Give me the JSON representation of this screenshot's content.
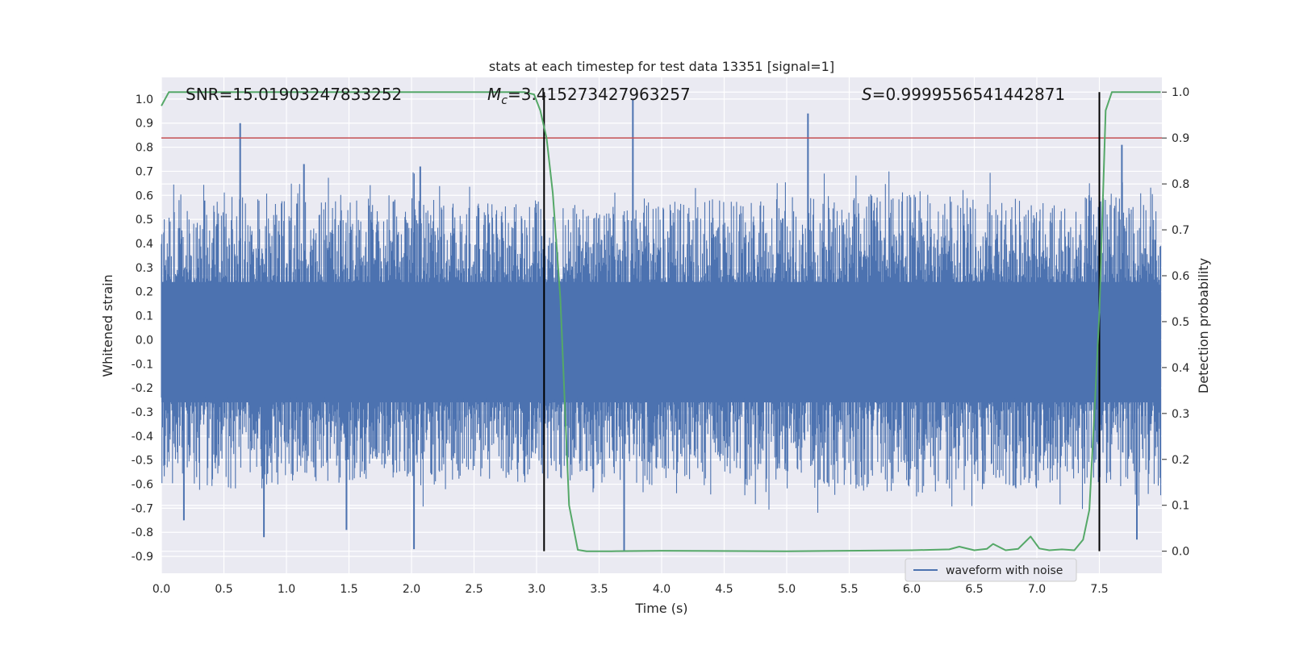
{
  "chart_data": {
    "type": "line",
    "title": "stats at each timestep for test data 13351 [signal=1]",
    "xlabel": "Time (s)",
    "ylabel": "Whitened strain",
    "y2label": "Detection probability",
    "xlim": [
      0.0,
      8.0
    ],
    "ylim": [
      -0.97,
      1.09
    ],
    "y2lim": [
      -0.048,
      1.032
    ],
    "x_ticks": [
      "0.0",
      "0.5",
      "1.0",
      "1.5",
      "2.0",
      "2.5",
      "3.0",
      "3.5",
      "4.0",
      "4.5",
      "5.0",
      "5.5",
      "6.0",
      "6.5",
      "7.0",
      "7.5"
    ],
    "y_ticks": [
      "1.0",
      "0.9",
      "0.8",
      "0.7",
      "0.6",
      "0.5",
      "0.4",
      "0.3",
      "0.2",
      "0.1",
      "0.0",
      "-0.1",
      "-0.2",
      "-0.3",
      "-0.4",
      "-0.5",
      "-0.6",
      "-0.7",
      "-0.8",
      "-0.9"
    ],
    "y2_ticks": [
      "1.0",
      "0.9",
      "0.8",
      "0.7",
      "0.6",
      "0.5",
      "0.4",
      "0.3",
      "0.2",
      "0.1",
      "0.0"
    ],
    "annotations": {
      "snr": "SNR=15.01903247833252",
      "mc_symbol": "M",
      "mc_sub": "c",
      "mc_value": "=3.415273427963257",
      "s_symbol": "S",
      "s_value": "=0.9999556541442871"
    },
    "threshold": {
      "y2": 0.9,
      "color": "#c44e52"
    },
    "event_markers": {
      "x": [
        3.06,
        7.5
      ],
      "color": "#000000"
    },
    "legend": {
      "entries": [
        "waveform with noise"
      ],
      "location": "lower right"
    },
    "series": [
      {
        "name": "waveform with noise",
        "axis": "left",
        "color": "#4c72b0",
        "envelope": {
          "x": [
            0.0,
            0.5,
            1.0,
            1.5,
            2.0,
            2.5,
            3.0,
            3.5,
            4.0,
            4.5,
            5.0,
            5.5,
            6.0,
            6.5,
            7.0,
            7.5,
            7.99
          ],
          "upper": [
            0.62,
            0.6,
            0.62,
            0.58,
            0.6,
            0.57,
            0.58,
            0.56,
            0.6,
            0.58,
            0.6,
            0.6,
            0.62,
            0.6,
            0.58,
            0.6,
            0.66
          ],
          "lower": [
            -0.6,
            -0.62,
            -0.62,
            -0.6,
            -0.62,
            -0.58,
            -0.6,
            -0.62,
            -0.62,
            -0.6,
            -0.62,
            -0.62,
            -0.66,
            -0.62,
            -0.62,
            -0.6,
            -0.7
          ]
        },
        "peaks": [
          {
            "x": 0.63,
            "y": 0.9
          },
          {
            "x": 3.77,
            "y": 1.0
          },
          {
            "x": 5.17,
            "y": 0.94
          },
          {
            "x": 7.68,
            "y": 0.81
          },
          {
            "x": 0.82,
            "y": -0.82
          },
          {
            "x": 2.02,
            "y": -0.87
          },
          {
            "x": 3.7,
            "y": -0.88
          },
          {
            "x": 7.8,
            "y": -0.83
          },
          {
            "x": 1.14,
            "y": 0.73
          },
          {
            "x": 2.07,
            "y": 0.72
          },
          {
            "x": 0.18,
            "y": -0.75
          },
          {
            "x": 1.48,
            "y": -0.79
          }
        ]
      },
      {
        "name": "detection probability",
        "axis": "right",
        "color": "#55a868",
        "x": [
          0.0,
          0.06,
          0.5,
          1.0,
          1.5,
          2.0,
          2.5,
          2.9,
          2.98,
          3.03,
          3.08,
          3.13,
          3.19,
          3.26,
          3.33,
          3.4,
          3.5,
          3.6,
          4.0,
          5.0,
          6.0,
          6.3,
          6.38,
          6.5,
          6.6,
          6.65,
          6.75,
          6.85,
          6.95,
          7.02,
          7.1,
          7.2,
          7.3,
          7.37,
          7.42,
          7.46,
          7.5,
          7.55,
          7.6,
          7.99
        ],
        "y": [
          0.97,
          1.0,
          1.0,
          1.0,
          1.0,
          1.0,
          1.0,
          1.0,
          0.995,
          0.96,
          0.9,
          0.78,
          0.55,
          0.1,
          0.003,
          0.0,
          0.0,
          0.0,
          0.001,
          0.0,
          0.002,
          0.004,
          0.01,
          0.002,
          0.005,
          0.016,
          0.002,
          0.005,
          0.032,
          0.006,
          0.002,
          0.004,
          0.002,
          0.025,
          0.09,
          0.3,
          0.52,
          0.96,
          1.0,
          1.0
        ]
      }
    ]
  }
}
